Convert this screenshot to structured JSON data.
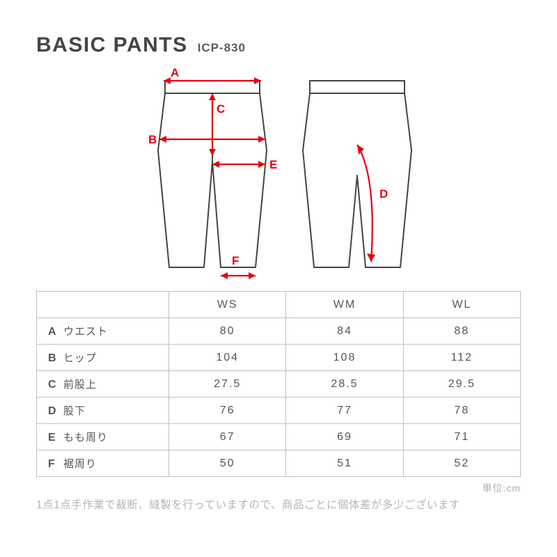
{
  "title": "BASIC PANTS",
  "sku": "ICP-830",
  "unit_label": "単位:cm",
  "note": "1点1点手作業で裁断、縫製を行っていますので、商品ごとに個体差が多少ございます",
  "diagram": {
    "stroke_color": "#444444",
    "measure_color": "#e60012",
    "labels": {
      "A": "A",
      "B": "B",
      "C": "C",
      "D": "D",
      "E": "E",
      "F": "F"
    }
  },
  "table": {
    "columns": [
      "WS",
      "WM",
      "WL"
    ],
    "rows": [
      {
        "letter": "A",
        "name": "ウエスト",
        "values": [
          "80",
          "84",
          "88"
        ]
      },
      {
        "letter": "B",
        "name": "ヒップ",
        "values": [
          "104",
          "108",
          "112"
        ]
      },
      {
        "letter": "C",
        "name": "前股上",
        "values": [
          "27.5",
          "28.5",
          "29.5"
        ]
      },
      {
        "letter": "D",
        "name": "股下",
        "values": [
          "76",
          "77",
          "78"
        ]
      },
      {
        "letter": "E",
        "name": "もも周り",
        "values": [
          "67",
          "69",
          "71"
        ]
      },
      {
        "letter": "F",
        "name": "裾周り",
        "values": [
          "50",
          "51",
          "52"
        ]
      }
    ]
  }
}
